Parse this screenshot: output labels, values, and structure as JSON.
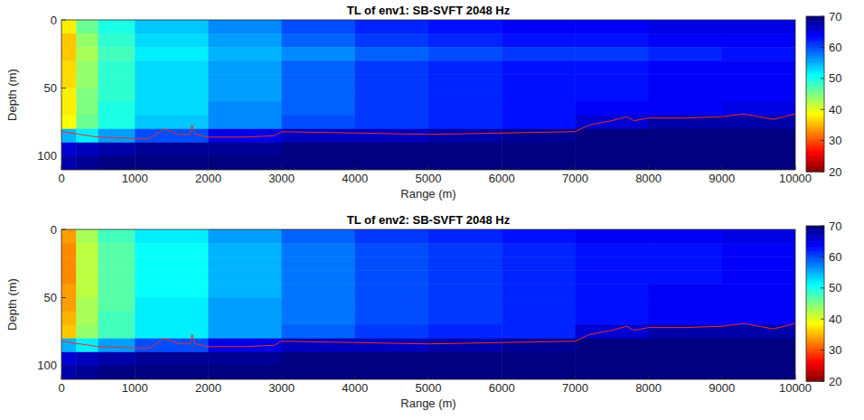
{
  "chart_data": [
    {
      "type": "heatmap",
      "title": "TL of env1: SB-SVFT 2048 Hz",
      "x_label": "Range (m)",
      "y_label": "Depth (m)",
      "xlim": [
        0,
        10000
      ],
      "ylim": [
        110,
        0
      ],
      "xticks": [
        0,
        1000,
        2000,
        3000,
        4000,
        5000,
        6000,
        7000,
        8000,
        9000,
        10000
      ],
      "yticks": [
        0,
        50,
        100
      ],
      "x_edges": [
        0,
        200,
        500,
        1000,
        2000,
        3000,
        4000,
        5000,
        6000,
        7000,
        8000,
        9000,
        10000
      ],
      "y_edges": [
        0,
        10,
        20,
        30,
        40,
        50,
        60,
        70,
        80,
        90,
        100,
        110
      ],
      "cells": [
        [
          38,
          46,
          50,
          54,
          57,
          60,
          62,
          63,
          64,
          64,
          65,
          65
        ],
        [
          36,
          44,
          49,
          53,
          56,
          59,
          61,
          62,
          63,
          63,
          64,
          64
        ],
        [
          36,
          43,
          48,
          52,
          55,
          57,
          59,
          60,
          61,
          61,
          62,
          63
        ],
        [
          37,
          44,
          49,
          53,
          56,
          59,
          61,
          62,
          63,
          63,
          64,
          64
        ],
        [
          37,
          44,
          49,
          53,
          56,
          59,
          61,
          62,
          63,
          63,
          64,
          64
        ],
        [
          38,
          45,
          49,
          53,
          56,
          59,
          61,
          62,
          63,
          63,
          64,
          64
        ],
        [
          38,
          45,
          50,
          53,
          57,
          59,
          61,
          62,
          63,
          64,
          64,
          65
        ],
        [
          39,
          46,
          50,
          54,
          57,
          60,
          61,
          62,
          63,
          66,
          68,
          68
        ],
        [
          55,
          52,
          56,
          60,
          65,
          67,
          67,
          68,
          69,
          70,
          70,
          70
        ],
        [
          66,
          67,
          68,
          69,
          69,
          70,
          70,
          70,
          70,
          70,
          70,
          70
        ],
        [
          68,
          69,
          70,
          70,
          70,
          70,
          70,
          70,
          70,
          70,
          70,
          70
        ]
      ],
      "colorbar": {
        "range": [
          20,
          70
        ],
        "ticks": [
          20,
          30,
          40,
          50,
          60,
          70
        ]
      },
      "bottom_line": {
        "color": "#e8302a",
        "x": [
          0,
          500,
          1000,
          1200,
          1400,
          1600,
          1750,
          1780,
          1820,
          2000,
          2500,
          2900,
          3000,
          4000,
          5000,
          6000,
          7000,
          7200,
          7500,
          7700,
          7800,
          8000,
          8500,
          9000,
          9300,
          9700,
          10000
        ],
        "values": [
          82,
          86,
          87,
          87,
          80,
          84,
          84,
          77,
          84,
          86,
          86,
          85,
          82,
          83,
          84,
          83,
          82,
          77,
          74,
          71,
          74,
          72,
          72,
          71,
          69,
          73,
          69
        ]
      }
    },
    {
      "type": "heatmap",
      "title": "TL of env2: SB-SVFT 2048 Hz",
      "x_label": "Range (m)",
      "y_label": "Depth (m)",
      "xlim": [
        0,
        10000
      ],
      "ylim": [
        110,
        0
      ],
      "xticks": [
        0,
        1000,
        2000,
        3000,
        4000,
        5000,
        6000,
        7000,
        8000,
        9000,
        10000
      ],
      "yticks": [
        0,
        50,
        100
      ],
      "x_edges": [
        0,
        200,
        500,
        1000,
        2000,
        3000,
        4000,
        5000,
        6000,
        7000,
        8000,
        9000,
        10000
      ],
      "y_edges": [
        0,
        10,
        20,
        30,
        40,
        50,
        60,
        70,
        80,
        90,
        100,
        110
      ],
      "cells": [
        [
          34,
          43,
          48,
          52,
          56,
          59,
          61,
          62,
          63,
          64,
          64,
          65
        ],
        [
          33,
          42,
          47,
          51,
          55,
          58,
          60,
          61,
          62,
          63,
          63,
          64
        ],
        [
          33,
          42,
          47,
          51,
          55,
          58,
          60,
          61,
          62,
          63,
          63,
          64
        ],
        [
          33,
          42,
          47,
          51,
          55,
          58,
          60,
          61,
          62,
          63,
          63,
          64
        ],
        [
          34,
          42,
          47,
          51,
          55,
          58,
          60,
          61,
          62,
          63,
          64,
          64
        ],
        [
          34,
          43,
          47,
          52,
          56,
          58,
          60,
          61,
          62,
          63,
          64,
          64
        ],
        [
          35,
          43,
          48,
          52,
          56,
          58,
          60,
          61,
          62,
          63,
          64,
          64
        ],
        [
          36,
          44,
          48,
          52,
          56,
          59,
          61,
          62,
          62,
          66,
          68,
          68
        ],
        [
          55,
          52,
          56,
          60,
          65,
          67,
          67,
          68,
          69,
          70,
          70,
          70
        ],
        [
          66,
          67,
          68,
          69,
          69,
          70,
          70,
          70,
          70,
          70,
          70,
          70
        ],
        [
          68,
          69,
          70,
          70,
          70,
          70,
          70,
          70,
          70,
          70,
          70,
          70
        ]
      ],
      "colorbar": {
        "range": [
          20,
          70
        ],
        "ticks": [
          20,
          30,
          40,
          50,
          60,
          70
        ]
      },
      "bottom_line": {
        "color": "#e8302a",
        "x": [
          0,
          500,
          1000,
          1200,
          1400,
          1600,
          1750,
          1780,
          1820,
          2000,
          2500,
          2900,
          3000,
          4000,
          5000,
          6000,
          7000,
          7200,
          7500,
          7700,
          7800,
          8000,
          8500,
          9000,
          9300,
          9700,
          10000
        ],
        "values": [
          82,
          86,
          87,
          87,
          80,
          84,
          84,
          77,
          84,
          86,
          86,
          85,
          82,
          83,
          84,
          83,
          82,
          77,
          74,
          71,
          74,
          72,
          72,
          71,
          69,
          73,
          69
        ]
      }
    }
  ]
}
